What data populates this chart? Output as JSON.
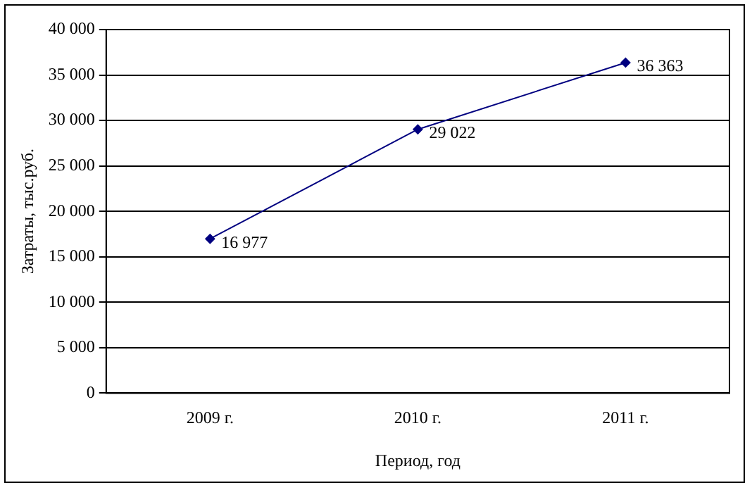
{
  "chart_data": {
    "type": "line",
    "xlabel": "Период, год",
    "ylabel": "Затраты, тыс.руб.",
    "categories": [
      "2009 г.",
      "2010 г.",
      "2011 г."
    ],
    "series": [
      {
        "color": "#000080",
        "values": [
          16977,
          29022,
          36363
        ],
        "value_labels": [
          "16 977",
          "29 022",
          "36 363"
        ]
      }
    ],
    "ylim": [
      0,
      40000
    ],
    "yticks": [
      0,
      {
        "value": 5000,
        "label": "5 000"
      },
      {
        "value": 10000,
        "label": "10 000"
      },
      {
        "value": 15000,
        "label": "15 000"
      },
      {
        "value": 20000,
        "label": "20 000"
      },
      {
        "value": 25000,
        "label": "25 000"
      },
      {
        "value": 30000,
        "label": "30 000"
      },
      {
        "value": 35000,
        "label": "35 000"
      },
      {
        "value": 40000,
        "label": "40 000"
      }
    ],
    "grid": "y",
    "legend": false,
    "marker": "diamond",
    "line_style": "solid"
  }
}
